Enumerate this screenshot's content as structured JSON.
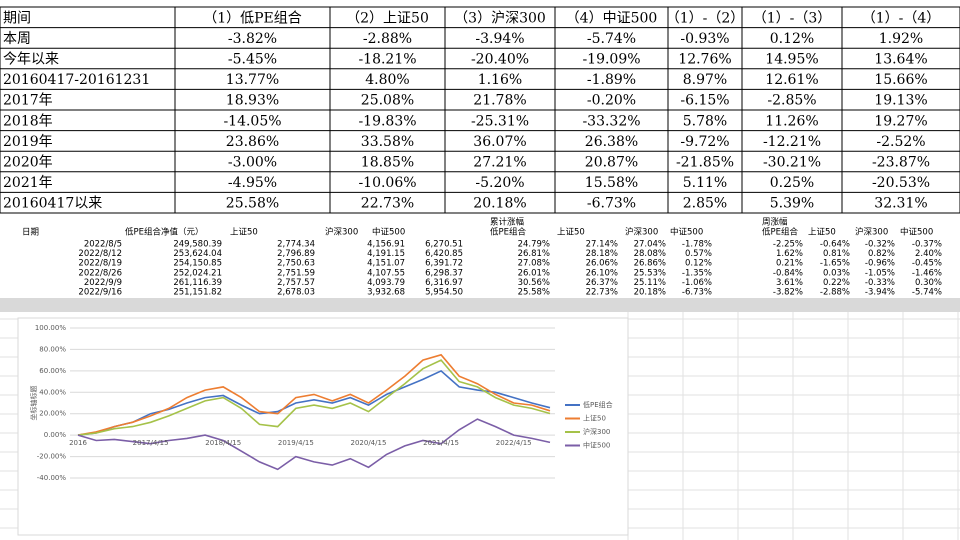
{
  "table": {
    "header": [
      "期间",
      "（1）低PE组合",
      "（2）上证50",
      "（3）沪深300",
      "（4）中证500",
      "（1）-（2）",
      "（1）-（3）",
      "（1）-（4）"
    ],
    "rows": [
      [
        "本周",
        "-3.82%",
        "-2.88%",
        "-3.94%",
        "-5.74%",
        "-0.93%",
        "0.12%",
        "1.92%"
      ],
      [
        "今年以来",
        "-5.45%",
        "-18.21%",
        "-20.40%",
        "-19.09%",
        "12.76%",
        "14.95%",
        "13.64%"
      ],
      [
        "20160417-20161231",
        "13.77%",
        "4.80%",
        "1.16%",
        "-1.89%",
        "8.97%",
        "12.61%",
        "15.66%"
      ],
      [
        "2017年",
        "18.93%",
        "25.08%",
        "21.78%",
        "-0.20%",
        "-6.15%",
        "-2.85%",
        "19.13%"
      ],
      [
        "2018年",
        "-14.05%",
        "-19.83%",
        "-25.31%",
        "-33.32%",
        "5.78%",
        "11.26%",
        "19.27%"
      ],
      [
        "2019年",
        "23.86%",
        "33.58%",
        "36.07%",
        "26.38%",
        "-9.72%",
        "-12.21%",
        "-2.52%"
      ],
      [
        "2020年",
        "-3.00%",
        "18.85%",
        "27.21%",
        "20.87%",
        "-21.85%",
        "-30.21%",
        "-23.87%"
      ],
      [
        "2021年",
        "-4.95%",
        "-10.06%",
        "-5.20%",
        "15.58%",
        "5.11%",
        "0.25%",
        "-20.53%"
      ],
      [
        "20160417以来",
        "25.58%",
        "22.73%",
        "20.18%",
        "-6.73%",
        "2.85%",
        "5.39%",
        "32.31%"
      ]
    ]
  },
  "sheet": {
    "group_headers": [
      "累计涨幅",
      "周涨幅"
    ],
    "header": [
      "日期",
      "低PE组合净值（元）",
      "上证50",
      "沪深300",
      "中证500",
      "低PE组合",
      "上证50",
      "沪深300",
      "中证500",
      "低PE组合",
      "上证50",
      "沪深300",
      "中证500"
    ],
    "rows": [
      [
        "2022/8/5",
        "249,580.39",
        "2,774.34",
        "4,156.91",
        "6,270.51",
        "24.79%",
        "27.14%",
        "27.04%",
        "-1.78%",
        "-2.25%",
        "-0.64%",
        "-0.32%",
        "-0.37%"
      ],
      [
        "2022/8/12",
        "253,624.04",
        "2,796.89",
        "4,191.15",
        "6,420.85",
        "26.81%",
        "28.18%",
        "28.08%",
        "0.57%",
        "1.62%",
        "0.81%",
        "0.82%",
        "2.40%"
      ],
      [
        "2022/8/19",
        "254,150.85",
        "2,750.63",
        "4,151.07",
        "6,391.72",
        "27.08%",
        "26.06%",
        "26.86%",
        "0.12%",
        "0.21%",
        "-1.65%",
        "-0.96%",
        "-0.45%"
      ],
      [
        "2022/8/26",
        "252,024.21",
        "2,751.59",
        "4,107.55",
        "6,298.37",
        "26.01%",
        "26.10%",
        "25.53%",
        "-1.35%",
        "-0.84%",
        "0.03%",
        "-1.05%",
        "-1.46%"
      ],
      [
        "2022/9/9",
        "261,116.39",
        "2,757.57",
        "4,093.79",
        "6,316.97",
        "30.56%",
        "26.37%",
        "25.11%",
        "-1.06%",
        "3.61%",
        "0.22%",
        "-0.33%",
        "0.30%"
      ],
      [
        "2022/9/16",
        "251,151.82",
        "2,678.03",
        "3,932.68",
        "5,954.50",
        "25.58%",
        "22.73%",
        "20.18%",
        "-6.73%",
        "-3.82%",
        "-2.88%",
        "-3.94%",
        "-5.74%"
      ]
    ]
  },
  "chart_data": {
    "type": "line",
    "y_axis_label": "坐标轴标题",
    "categories": [
      "2016",
      null,
      null,
      null,
      "2017/4/15",
      null,
      null,
      null,
      "2018/4/15",
      null,
      null,
      null,
      "2019/4/15",
      null,
      null,
      null,
      "2020/4/15",
      null,
      null,
      null,
      "2021/4/15",
      null,
      null,
      null,
      "2022/4/15",
      null,
      null
    ],
    "series": [
      {
        "name": "低PE组合",
        "color": "#4472c4",
        "values": [
          0,
          2,
          8,
          12,
          20,
          24,
          30,
          35,
          37,
          28,
          20,
          22,
          30,
          33,
          30,
          35,
          28,
          38,
          45,
          52,
          60,
          45,
          42,
          40,
          35,
          30,
          25.58
        ]
      },
      {
        "name": "上证50",
        "color": "#ed7d31",
        "values": [
          0,
          3,
          8,
          12,
          18,
          25,
          35,
          42,
          45,
          35,
          22,
          20,
          35,
          38,
          32,
          38,
          30,
          42,
          55,
          70,
          75,
          55,
          48,
          38,
          30,
          28,
          22.73
        ]
      },
      {
        "name": "沪深300",
        "color": "#a5c249",
        "values": [
          0,
          2,
          6,
          8,
          12,
          18,
          25,
          32,
          35,
          25,
          10,
          8,
          25,
          28,
          25,
          30,
          22,
          35,
          48,
          62,
          70,
          50,
          45,
          35,
          28,
          25,
          20.18
        ]
      },
      {
        "name": "中证500",
        "color": "#7b5ea7",
        "values": [
          0,
          -5,
          -4,
          -6,
          -8,
          -5,
          -3,
          0,
          -5,
          -15,
          -25,
          -32,
          -20,
          -25,
          -28,
          -22,
          -30,
          -18,
          -10,
          -5,
          -8,
          5,
          15,
          8,
          0,
          -3,
          -6.73
        ]
      }
    ],
    "ylim": [
      -40,
      100
    ],
    "yticks": [
      {
        "value": -40,
        "label": "-40.00%"
      },
      {
        "value": -20,
        "label": "-20.00%"
      },
      {
        "value": 0,
        "label": "0.00%"
      },
      {
        "value": 20,
        "label": "20.00%"
      },
      {
        "value": 40,
        "label": "40.00%"
      },
      {
        "value": 60,
        "label": "60.00%"
      },
      {
        "value": 80,
        "label": "80.00%"
      },
      {
        "value": 100,
        "label": "100.00%"
      }
    ],
    "grid": true,
    "legend": "right"
  }
}
